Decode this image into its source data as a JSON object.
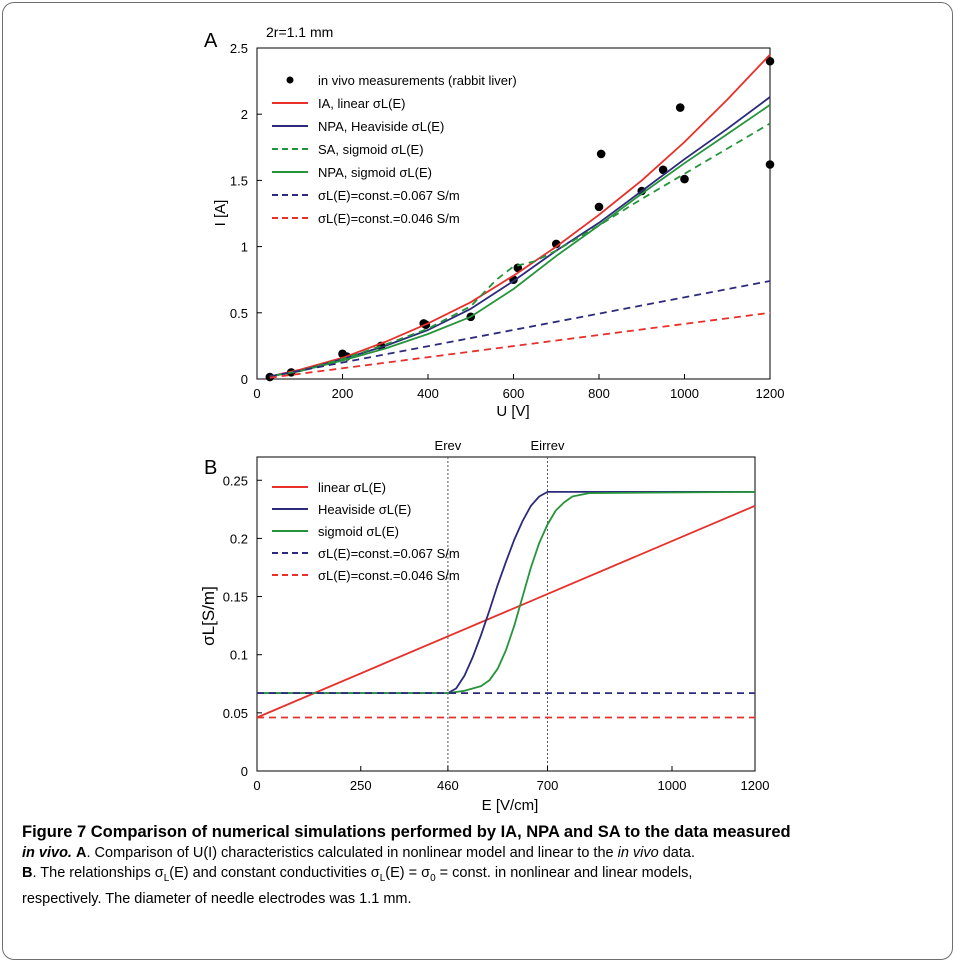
{
  "panel_a": {
    "panel_label": "A",
    "annotation": "2r=1.1 mm",
    "xlabel": "U [V]",
    "ylabel": "I [A]",
    "x_ticks": [
      "0",
      "200",
      "400",
      "600",
      "800",
      "1000",
      "1200"
    ],
    "y_ticks": [
      "0",
      "0.5",
      "1",
      "1.5",
      "2",
      "2.5"
    ],
    "legend": [
      {
        "label": "in vivo measurements (rabbit liver)"
      },
      {
        "label": "IA, linear σL(E)"
      },
      {
        "label": "NPA, Heaviside σL(E)"
      },
      {
        "label": "SA, sigmoid σL(E)"
      },
      {
        "label": "NPA, sigmoid σL(E)"
      },
      {
        "label": "σL(E)=const.=0.067 S/m"
      },
      {
        "label": "σL(E)=const.=0.046 S/m"
      }
    ]
  },
  "panel_b": {
    "panel_label": "B",
    "xlabel": "E [V/cm]",
    "ylabel": "σL[S/m]",
    "x_ticks": [
      "0",
      "250",
      "460",
      "700",
      "1000",
      "1200"
    ],
    "y_ticks": [
      "0",
      "0.05",
      "0.1",
      "0.15",
      "0.2",
      "0.25"
    ],
    "vline_labels": [
      "Erev",
      "Eirrev"
    ],
    "legend": [
      {
        "label": "linear σL(E)"
      },
      {
        "label": "Heaviside σL(E)"
      },
      {
        "label": "sigmoid σL(E)"
      },
      {
        "label": "σL(E)=const.=0.067 S/m"
      },
      {
        "label": "σL(E)=const.=0.046 S/m"
      }
    ]
  },
  "caption": {
    "title": "Figure 7 Comparison of numerical simulations performed by IA, NPA and SA to the data measured",
    "title_italic": "in vivo.",
    "a_label": "A",
    "a_text_1": ". Comparison of U(I) characteristics calculated in nonlinear model and linear to the ",
    "a_italic": "in vivo",
    "a_text_2": " data.",
    "b_label": "B",
    "b_text_1": ". The relationships σ",
    "b_sub_1": "L",
    "b_text_2": "(E) and constant conductivities σ",
    "b_sub_2": "L",
    "b_text_3": "(E) = σ",
    "b_sub_3": "0",
    "b_text_4": " = const. in nonlinear and linear models,",
    "line3": "respectively. The diameter of needle electrodes was 1.1 mm."
  },
  "colors": {
    "red": "#e8302a",
    "navy": "#2b2a7c",
    "green": "#25943a",
    "dots": "#000000"
  },
  "chart_data": [
    {
      "type": "line",
      "panel": "A",
      "xlabel": "U [V]",
      "ylabel": "I [A]",
      "xlim": [
        0,
        1200
      ],
      "ylim": [
        0,
        2.5
      ],
      "annotation": "2r=1.1 mm",
      "series": [
        {
          "name": "in vivo measurements (rabbit liver)",
          "style": "scatter",
          "color": "#000000",
          "x": [
            30,
            80,
            200,
            210,
            290,
            390,
            395,
            500,
            600,
            610,
            700,
            800,
            805,
            900,
            950,
            990,
            1000,
            1200,
            1200
          ],
          "y": [
            0.015,
            0.05,
            0.19,
            0.17,
            0.25,
            0.42,
            0.41,
            0.47,
            0.75,
            0.84,
            1.02,
            1.3,
            1.7,
            1.42,
            1.58,
            2.05,
            1.51,
            2.4,
            1.62
          ]
        },
        {
          "name": "IA, linear σL(E)",
          "style": "solid",
          "color": "#e8302a",
          "x": [
            30,
            100,
            200,
            300,
            400,
            500,
            600,
            700,
            800,
            900,
            1000,
            1100,
            1200
          ],
          "y": [
            0.02,
            0.07,
            0.16,
            0.28,
            0.42,
            0.58,
            0.78,
            1.0,
            1.24,
            1.5,
            1.79,
            2.11,
            2.45
          ]
        },
        {
          "name": "NPA, Heaviside σL(E)",
          "style": "solid",
          "color": "#2b2a7c",
          "x": [
            30,
            100,
            200,
            300,
            400,
            500,
            600,
            700,
            800,
            900,
            1000,
            1100,
            1200
          ],
          "y": [
            0.02,
            0.06,
            0.15,
            0.25,
            0.37,
            0.53,
            0.74,
            0.97,
            1.18,
            1.42,
            1.66,
            1.89,
            2.13
          ]
        },
        {
          "name": "SA, sigmoid σL(E)",
          "style": "dashed",
          "color": "#25943a",
          "x": [
            30,
            100,
            200,
            300,
            400,
            500,
            560,
            600,
            650,
            700,
            800,
            900,
            1000,
            1100,
            1200
          ],
          "y": [
            0.02,
            0.06,
            0.15,
            0.26,
            0.38,
            0.55,
            0.75,
            0.85,
            0.89,
            0.97,
            1.16,
            1.36,
            1.55,
            1.74,
            1.93
          ]
        },
        {
          "name": "NPA, sigmoid σL(E)",
          "style": "solid",
          "color": "#25943a",
          "x": [
            30,
            100,
            200,
            300,
            400,
            500,
            600,
            700,
            800,
            900,
            1000,
            1100,
            1200
          ],
          "y": [
            0.02,
            0.06,
            0.14,
            0.23,
            0.34,
            0.47,
            0.68,
            0.93,
            1.16,
            1.4,
            1.63,
            1.85,
            2.07
          ]
        },
        {
          "name": "σL(E)=const.=0.067 S/m",
          "style": "dashed",
          "color": "#2b2a7c",
          "x": [
            30,
            1200
          ],
          "y": [
            0.02,
            0.74
          ]
        },
        {
          "name": "σL(E)=const.=0.046 S/m",
          "style": "dashed",
          "color": "#e8302a",
          "x": [
            30,
            1200
          ],
          "y": [
            0.01,
            0.5
          ]
        }
      ]
    },
    {
      "type": "line",
      "panel": "B",
      "xlabel": "E [V/cm]",
      "ylabel": "σL[S/m]",
      "xlim": [
        0,
        1200
      ],
      "ylim": [
        0,
        0.27
      ],
      "vlines": [
        460,
        700
      ],
      "series": [
        {
          "name": "linear σL(E)",
          "style": "solid",
          "color": "#e8302a",
          "x": [
            0,
            1200
          ],
          "y": [
            0.046,
            0.228
          ]
        },
        {
          "name": "Heaviside σL(E)",
          "style": "solid",
          "color": "#2b2a7c",
          "x": [
            0,
            460,
            480,
            500,
            520,
            540,
            560,
            580,
            600,
            620,
            640,
            660,
            680,
            700,
            1200
          ],
          "y": [
            0.067,
            0.067,
            0.071,
            0.082,
            0.098,
            0.117,
            0.138,
            0.16,
            0.18,
            0.199,
            0.215,
            0.228,
            0.236,
            0.24,
            0.24
          ]
        },
        {
          "name": "sigmoid σL(E)",
          "style": "solid",
          "color": "#25943a",
          "x": [
            0,
            460,
            500,
            540,
            560,
            580,
            600,
            620,
            640,
            660,
            680,
            700,
            720,
            740,
            760,
            800,
            1200
          ],
          "y": [
            0.067,
            0.067,
            0.069,
            0.073,
            0.078,
            0.088,
            0.104,
            0.125,
            0.15,
            0.175,
            0.196,
            0.212,
            0.224,
            0.231,
            0.236,
            0.239,
            0.24
          ]
        },
        {
          "name": "σL(E)=const.=0.067 S/m",
          "style": "dashed",
          "color": "#2b2a7c",
          "x": [
            0,
            1200
          ],
          "y": [
            0.067,
            0.067
          ]
        },
        {
          "name": "σL(E)=const.=0.046 S/m",
          "style": "dashed",
          "color": "#e8302a",
          "x": [
            0,
            1200
          ],
          "y": [
            0.046,
            0.046
          ]
        }
      ]
    }
  ]
}
